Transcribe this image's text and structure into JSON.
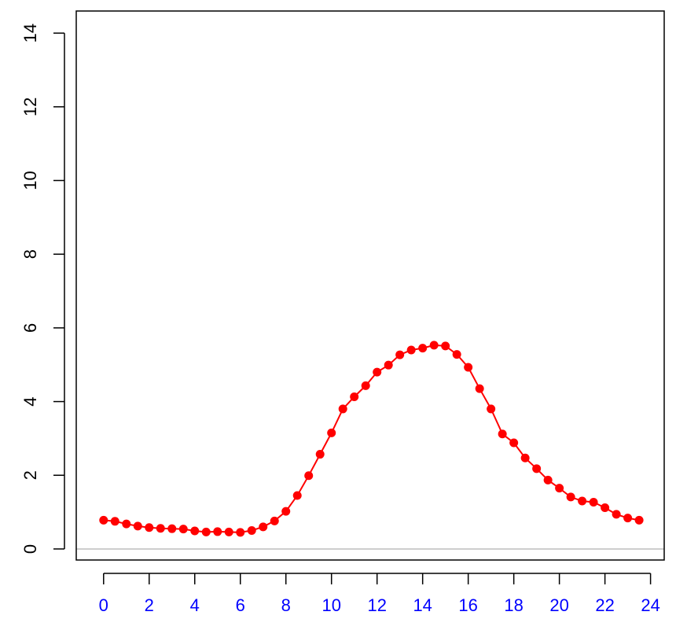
{
  "chart_data": {
    "type": "line",
    "title": "",
    "xlabel": "",
    "ylabel": "",
    "xlim": [
      -1.2,
      24.6
    ],
    "ylim": [
      -0.3,
      14.6
    ],
    "x_ticks": [
      "0",
      "2",
      "4",
      "6",
      "8",
      "10",
      "12",
      "14",
      "16",
      "18",
      "20",
      "22",
      "24"
    ],
    "y_ticks": [
      "0",
      "2",
      "4",
      "6",
      "8",
      "10",
      "12",
      "14"
    ],
    "grid": false,
    "reference_line_y": 0,
    "series": [
      {
        "color": "#ff0000",
        "x": [
          0,
          0.5,
          1,
          1.5,
          2,
          2.5,
          3,
          3.5,
          4,
          4.5,
          5,
          5.5,
          6,
          6.5,
          7,
          7.5,
          8,
          8.5,
          9,
          9.5,
          10,
          10.5,
          11,
          11.5,
          12,
          12.5,
          13,
          13.5,
          14,
          14.5,
          15,
          15.5,
          16,
          16.5,
          17,
          17.5,
          18,
          18.5,
          19,
          19.5,
          20,
          20.5,
          21,
          21.5,
          22,
          22.5,
          23,
          23.5
        ],
        "y": [
          0.78,
          0.75,
          0.68,
          0.62,
          0.58,
          0.56,
          0.55,
          0.54,
          0.49,
          0.46,
          0.47,
          0.46,
          0.45,
          0.5,
          0.6,
          0.76,
          1.02,
          1.45,
          1.99,
          2.57,
          3.15,
          3.8,
          4.13,
          4.43,
          4.8,
          4.99,
          5.27,
          5.4,
          5.45,
          5.53,
          5.51,
          5.28,
          4.93,
          4.35,
          3.8,
          3.12,
          2.88,
          2.47,
          2.18,
          1.87,
          1.65,
          1.41,
          1.3,
          1.27,
          1.12,
          0.94,
          0.84,
          0.78
        ]
      }
    ],
    "colors": {
      "series": "#ff0000",
      "x_tick_labels": "#0000ff",
      "y_tick_labels": "#000000",
      "reference_line": "#bebebe",
      "frame": "#000000"
    }
  }
}
